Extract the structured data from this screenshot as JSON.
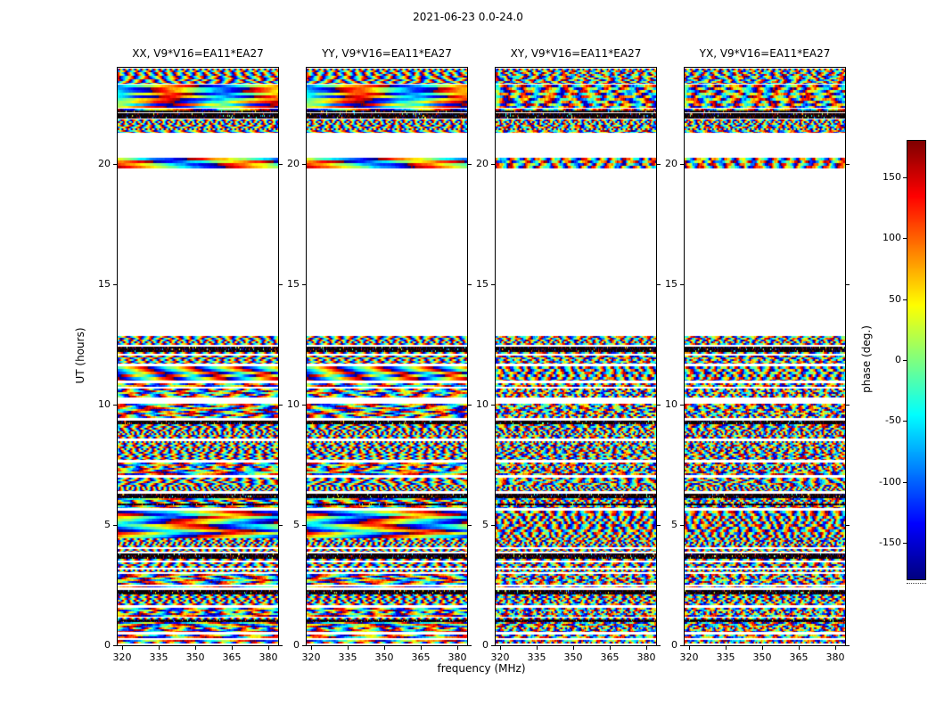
{
  "chart_data": {
    "type": "heatmap",
    "title": "2021-06-23 0.0-24.0",
    "xlabel": "frequency (MHz)",
    "ylabel": "UT (hours)",
    "x_ticks": [
      320,
      335,
      350,
      365,
      380
    ],
    "x_range": [
      318,
      384
    ],
    "y_ticks": [
      0,
      5,
      10,
      15,
      20
    ],
    "y_range": [
      0,
      24
    ],
    "grid": false,
    "colorbar": {
      "label": "phase (deg.)",
      "ticks": [
        150,
        100,
        50,
        0,
        -50,
        -100,
        -150
      ],
      "range": [
        -180,
        180
      ],
      "colormap": "jet"
    },
    "panels": [
      {
        "title": "XX, V9*V16=EA11*EA27",
        "polarization": "XX",
        "baseline": "V9*V16=EA11*EA27"
      },
      {
        "title": "YY, V9*V16=EA11*EA27",
        "polarization": "YY",
        "baseline": "V9*V16=EA11*EA27"
      },
      {
        "title": "XY, V9*V16=EA11*EA27",
        "polarization": "XY",
        "baseline": "V9*V16=EA11*EA27"
      },
      {
        "title": "YX, V9*V16=EA11*EA27",
        "polarization": "YX",
        "baseline": "V9*V16=EA11*EA27"
      }
    ],
    "time_bands": [
      [
        0.0,
        0.45,
        "noise"
      ],
      [
        0.55,
        0.95,
        "noise"
      ],
      [
        0.95,
        1.15,
        "black"
      ],
      [
        1.15,
        1.55,
        "noise"
      ],
      [
        1.65,
        2.1,
        "fine"
      ],
      [
        2.1,
        2.3,
        "black"
      ],
      [
        2.4,
        2.95,
        "noise"
      ],
      [
        3.05,
        3.6,
        "fine"
      ],
      [
        3.6,
        3.8,
        "black"
      ],
      [
        3.9,
        4.45,
        "fine"
      ],
      [
        4.45,
        5.6,
        "smooth"
      ],
      [
        5.7,
        6.1,
        "noise"
      ],
      [
        6.1,
        6.3,
        "black"
      ],
      [
        6.4,
        6.95,
        "fine"
      ],
      [
        7.05,
        7.6,
        "noise"
      ],
      [
        7.7,
        8.5,
        "fine"
      ],
      [
        8.6,
        9.2,
        "fine"
      ],
      [
        9.2,
        9.35,
        "black"
      ],
      [
        9.45,
        10.2,
        "noise"
      ],
      [
        10.3,
        10.9,
        "noise"
      ],
      [
        11.0,
        11.6,
        "smooth"
      ],
      [
        11.7,
        12.2,
        "fine"
      ],
      [
        12.2,
        12.4,
        "black"
      ],
      [
        12.5,
        12.85,
        "fine"
      ],
      [
        19.8,
        20.25,
        "smooth"
      ],
      [
        21.3,
        21.85,
        "fine"
      ],
      [
        21.9,
        22.1,
        "black"
      ],
      [
        22.15,
        22.3,
        "noise"
      ],
      [
        22.35,
        23.3,
        "smooth"
      ],
      [
        23.35,
        23.95,
        "fine"
      ]
    ]
  }
}
